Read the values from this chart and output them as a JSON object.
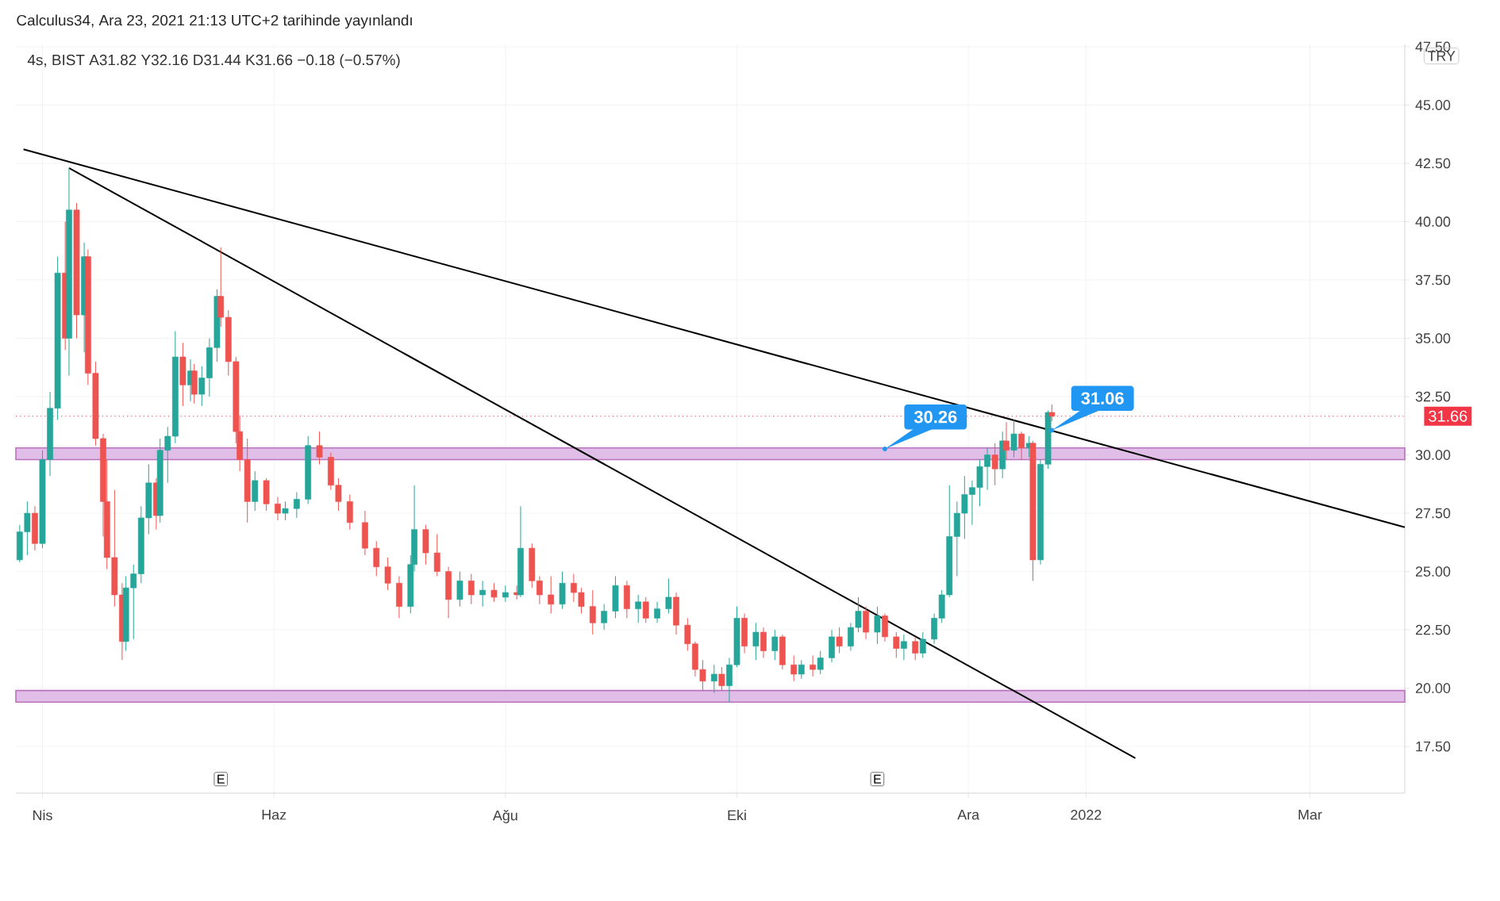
{
  "chart_data": {
    "type": "candlestick",
    "title": "Calculus34, Ara 23, 2021 21:13 UTC+2 tarihinde yayınlandı",
    "subtitle": "4s, BIST  A31.82  Y32.16  D31.44  K31.66  −0.18 (−0.57%)",
    "ylabel": "TRY",
    "x": [
      "2021-03-26",
      "2021-03-28",
      "2021-03-30",
      "2021-04-01",
      "2021-04-03",
      "2021-04-05",
      "2021-04-07",
      "2021-04-08",
      "2021-04-10",
      "2021-04-12",
      "2021-04-13",
      "2021-04-15",
      "2021-04-17",
      "2021-04-18",
      "2021-04-20",
      "2021-04-22",
      "2021-04-23",
      "2021-04-25",
      "2021-04-27",
      "2021-04-29",
      "2021-05-01",
      "2021-05-02",
      "2021-05-04",
      "2021-05-06",
      "2021-05-08",
      "2021-05-10",
      "2021-05-11",
      "2021-05-13",
      "2021-05-15",
      "2021-05-17",
      "2021-05-18",
      "2021-05-20",
      "2021-05-22",
      "2021-05-23",
      "2021-05-25",
      "2021-05-27",
      "2021-05-30",
      "2021-06-02",
      "2021-06-04",
      "2021-06-07",
      "2021-06-10",
      "2021-06-13",
      "2021-06-16",
      "2021-06-18",
      "2021-06-21",
      "2021-06-25",
      "2021-06-28",
      "2021-07-01",
      "2021-07-04",
      "2021-07-07",
      "2021-07-08",
      "2021-07-11",
      "2021-07-14",
      "2021-07-17",
      "2021-07-20",
      "2021-07-23",
      "2021-07-26",
      "2021-07-29",
      "2021-08-01",
      "2021-08-04",
      "2021-08-05",
      "2021-08-08",
      "2021-08-10",
      "2021-08-13",
      "2021-08-16",
      "2021-08-19",
      "2021-08-21",
      "2021-08-24",
      "2021-08-27",
      "2021-08-30",
      "2021-09-02",
      "2021-09-05",
      "2021-09-07",
      "2021-09-10",
      "2021-09-13",
      "2021-09-15",
      "2021-09-18",
      "2021-09-20",
      "2021-09-22",
      "2021-09-25",
      "2021-09-27",
      "2021-09-29",
      "2021-10-01",
      "2021-10-03",
      "2021-10-06",
      "2021-10-08",
      "2021-10-11",
      "2021-10-13",
      "2021-10-16",
      "2021-10-18",
      "2021-10-21",
      "2021-10-23",
      "2021-10-26",
      "2021-10-28",
      "2021-10-31",
      "2021-11-02",
      "2021-11-04",
      "2021-11-07",
      "2021-11-09",
      "2021-11-12",
      "2021-11-14",
      "2021-11-17",
      "2021-11-19",
      "2021-11-22",
      "2021-11-24",
      "2021-11-26",
      "2021-11-28",
      "2021-11-30",
      "2021-12-02",
      "2021-12-04",
      "2021-12-06",
      "2021-12-08",
      "2021-12-10",
      "2021-12-11",
      "2021-12-13",
      "2021-12-15",
      "2021-12-17",
      "2021-12-18",
      "2021-12-20",
      "2021-12-22",
      "2021-12-23"
    ],
    "ohlc": [
      [
        25.5,
        27.0,
        25.4,
        26.7
      ],
      [
        26.7,
        28.0,
        25.7,
        27.5
      ],
      [
        27.5,
        27.8,
        25.9,
        26.2
      ],
      [
        26.2,
        30.2,
        26.0,
        29.8
      ],
      [
        29.8,
        32.7,
        29.1,
        32.0
      ],
      [
        32.0,
        38.5,
        31.5,
        37.8
      ],
      [
        37.8,
        40.0,
        34.5,
        35.0
      ],
      [
        35.0,
        42.3,
        33.4,
        40.5
      ],
      [
        40.5,
        40.8,
        35.0,
        36.0
      ],
      [
        36.0,
        39.1,
        34.4,
        38.5
      ],
      [
        38.5,
        38.8,
        33.0,
        33.5
      ],
      [
        33.5,
        34.0,
        30.4,
        30.7
      ],
      [
        30.7,
        30.9,
        26.5,
        28.0
      ],
      [
        28.0,
        29.8,
        25.1,
        25.6
      ],
      [
        25.6,
        28.5,
        23.5,
        24.0
      ],
      [
        24.0,
        24.5,
        21.2,
        22.0
      ],
      [
        22.0,
        24.8,
        21.6,
        24.3
      ],
      [
        24.3,
        25.3,
        22.1,
        24.9
      ],
      [
        24.9,
        27.8,
        24.5,
        27.3
      ],
      [
        27.3,
        29.6,
        26.6,
        28.8
      ],
      [
        28.8,
        29.0,
        26.8,
        27.4
      ],
      [
        27.4,
        30.7,
        27.1,
        30.2
      ],
      [
        30.2,
        31.2,
        28.8,
        30.8
      ],
      [
        30.8,
        35.3,
        30.5,
        34.2
      ],
      [
        34.2,
        34.8,
        32.1,
        33.0
      ],
      [
        33.0,
        34.1,
        32.3,
        33.6
      ],
      [
        33.6,
        33.9,
        32.2,
        32.6
      ],
      [
        32.6,
        33.8,
        32.1,
        33.3
      ],
      [
        33.3,
        35.0,
        32.5,
        34.6
      ],
      [
        34.6,
        37.1,
        34.0,
        36.8
      ],
      [
        36.8,
        38.9,
        35.5,
        35.9
      ],
      [
        35.9,
        36.2,
        33.4,
        34.0
      ],
      [
        34.0,
        34.2,
        30.5,
        31.0
      ],
      [
        31.0,
        31.7,
        29.3,
        29.8
      ],
      [
        29.8,
        30.7,
        27.1,
        28.0
      ],
      [
        28.0,
        29.3,
        27.6,
        28.9
      ],
      [
        28.9,
        29.0,
        27.6,
        27.9
      ],
      [
        27.9,
        28.2,
        27.2,
        27.5
      ],
      [
        27.5,
        28.0,
        27.2,
        27.7
      ],
      [
        27.7,
        28.4,
        27.3,
        28.1
      ],
      [
        28.1,
        30.8,
        27.9,
        30.4
      ],
      [
        30.4,
        31.0,
        29.6,
        29.9
      ],
      [
        29.9,
        30.1,
        28.5,
        28.7
      ],
      [
        28.7,
        29.0,
        27.6,
        28.0
      ],
      [
        28.0,
        28.3,
        26.8,
        27.1
      ],
      [
        27.1,
        27.6,
        25.7,
        26.0
      ],
      [
        26.0,
        26.3,
        24.8,
        25.2
      ],
      [
        25.2,
        25.6,
        24.2,
        24.5
      ],
      [
        24.5,
        24.8,
        23.0,
        23.5
      ],
      [
        23.5,
        25.7,
        23.2,
        25.3
      ],
      [
        25.3,
        28.7,
        25.0,
        26.8
      ],
      [
        26.8,
        27.0,
        25.3,
        25.8
      ],
      [
        25.8,
        26.6,
        24.8,
        25.0
      ],
      [
        25.0,
        25.2,
        23.0,
        23.8
      ],
      [
        23.8,
        25.0,
        23.5,
        24.6
      ],
      [
        24.6,
        24.9,
        23.6,
        24.0
      ],
      [
        24.0,
        24.6,
        23.5,
        24.2
      ],
      [
        24.2,
        24.5,
        23.7,
        23.9
      ],
      [
        23.9,
        24.4,
        23.7,
        24.1
      ],
      [
        24.1,
        24.4,
        23.8,
        24.0
      ],
      [
        24.0,
        27.8,
        23.9,
        26.0
      ],
      [
        26.0,
        26.2,
        24.3,
        24.6
      ],
      [
        24.6,
        24.8,
        23.6,
        24.0
      ],
      [
        24.0,
        24.8,
        23.2,
        23.6
      ],
      [
        23.6,
        25.0,
        23.4,
        24.5
      ],
      [
        24.5,
        24.9,
        23.7,
        24.1
      ],
      [
        24.1,
        24.3,
        23.2,
        23.5
      ],
      [
        23.5,
        24.2,
        22.3,
        22.8
      ],
      [
        22.8,
        23.6,
        22.5,
        23.3
      ],
      [
        23.3,
        24.8,
        23.0,
        24.4
      ],
      [
        24.4,
        24.6,
        23.0,
        23.4
      ],
      [
        23.4,
        24.0,
        22.8,
        23.7
      ],
      [
        23.7,
        23.9,
        22.8,
        23.0
      ],
      [
        23.0,
        23.7,
        22.8,
        23.4
      ],
      [
        23.4,
        24.7,
        23.2,
        23.9
      ],
      [
        23.9,
        24.1,
        22.3,
        22.7
      ],
      [
        22.7,
        23.0,
        21.6,
        21.9
      ],
      [
        21.9,
        22.0,
        20.5,
        20.8
      ],
      [
        20.8,
        21.2,
        19.9,
        20.3
      ],
      [
        20.3,
        21.0,
        19.8,
        20.6
      ],
      [
        20.6,
        20.9,
        19.9,
        20.1
      ],
      [
        20.1,
        21.3,
        19.4,
        21.0
      ],
      [
        21.0,
        23.5,
        20.9,
        23.0
      ],
      [
        23.0,
        23.2,
        21.5,
        21.8
      ],
      [
        21.8,
        22.8,
        21.2,
        22.4
      ],
      [
        22.4,
        22.6,
        21.3,
        21.6
      ],
      [
        21.6,
        22.5,
        21.2,
        22.2
      ],
      [
        22.2,
        22.3,
        20.8,
        21.0
      ],
      [
        21.0,
        21.4,
        20.3,
        20.6
      ],
      [
        20.6,
        21.2,
        20.4,
        21.0
      ],
      [
        21.0,
        21.4,
        20.5,
        20.8
      ],
      [
        20.8,
        21.6,
        20.6,
        21.3
      ],
      [
        21.3,
        22.5,
        21.1,
        22.2
      ],
      [
        22.2,
        22.6,
        21.5,
        21.8
      ],
      [
        21.8,
        22.8,
        21.6,
        22.6
      ],
      [
        22.6,
        23.9,
        22.4,
        23.3
      ],
      [
        23.3,
        23.5,
        22.1,
        22.4
      ],
      [
        22.4,
        23.5,
        21.9,
        23.1
      ],
      [
        23.1,
        23.2,
        22.0,
        22.2
      ],
      [
        22.2,
        22.4,
        21.3,
        21.7
      ],
      [
        21.7,
        22.3,
        21.2,
        22.0
      ],
      [
        22.0,
        22.2,
        21.2,
        21.5
      ],
      [
        21.5,
        22.4,
        21.3,
        22.1
      ],
      [
        22.1,
        23.2,
        21.9,
        23.0
      ],
      [
        23.0,
        24.2,
        22.8,
        24.0
      ],
      [
        24.0,
        28.7,
        23.9,
        26.5
      ],
      [
        26.5,
        28.0,
        24.8,
        27.5
      ],
      [
        27.5,
        29.1,
        26.4,
        28.3
      ],
      [
        28.3,
        28.9,
        27.0,
        28.6
      ],
      [
        28.6,
        29.8,
        27.8,
        29.5
      ],
      [
        29.5,
        30.3,
        28.5,
        30.0
      ],
      [
        30.0,
        30.5,
        28.7,
        29.4
      ],
      [
        29.4,
        31.0,
        29.0,
        30.6
      ],
      [
        30.6,
        31.4,
        29.8,
        30.2
      ],
      [
        30.2,
        31.5,
        29.9,
        30.9
      ],
      [
        30.9,
        31.0,
        29.8,
        30.3
      ],
      [
        30.3,
        30.8,
        29.9,
        30.5
      ],
      [
        30.5,
        30.6,
        24.6,
        25.5
      ],
      [
        25.5,
        29.8,
        25.3,
        29.6
      ],
      [
        29.6,
        31.9,
        29.4,
        31.82
      ],
      [
        31.82,
        32.16,
        31.44,
        31.66
      ]
    ],
    "series": [
      {
        "type": "line",
        "x": [
          "2021-03-27",
          "2022-03-26"
        ],
        "values": [
          43.1,
          26.9
        ],
        "color": "#000000"
      },
      {
        "type": "line",
        "x": [
          "2021-04-08",
          "2022-01-14"
        ],
        "values": [
          42.3,
          17.0
        ],
        "color": "#000000"
      }
    ],
    "xlim": [
      "2021-03-25",
      "2022-03-26"
    ],
    "xticks": [
      {
        "value": "2021-04-01",
        "label": "Nis"
      },
      {
        "value": "2021-06-01",
        "label": "Haz"
      },
      {
        "value": "2021-08-01",
        "label": "Ağu"
      },
      {
        "value": "2021-10-01",
        "label": "Eki"
      },
      {
        "value": "2021-12-01",
        "label": "Ara"
      },
      {
        "value": "2022-01-01",
        "label": "2022"
      },
      {
        "value": "2022-03-01",
        "label": "Mar"
      }
    ],
    "ylim": [
      15.5,
      47.6
    ],
    "yticks": [
      {
        "value": 17.5,
        "label": "17.50"
      },
      {
        "value": 20,
        "label": "20.00"
      },
      {
        "value": 22.5,
        "label": "22.50"
      },
      {
        "value": 25,
        "label": "25.00"
      },
      {
        "value": 27.5,
        "label": "27.50"
      },
      {
        "value": 30,
        "label": "30.00"
      },
      {
        "value": 32.5,
        "label": "32.50"
      },
      {
        "value": 35,
        "label": "35.00"
      },
      {
        "value": 37.5,
        "label": "37.50"
      },
      {
        "value": 40,
        "label": "40.00"
      },
      {
        "value": 42.5,
        "label": "42.50"
      },
      {
        "value": 45,
        "label": "45.00"
      },
      {
        "value": 47.5,
        "label": "47.50"
      }
    ],
    "ref_lines": [
      {
        "axis": "y",
        "value": 31.66,
        "label": "31.66",
        "color": "#f23645",
        "line_style": "dotted"
      }
    ],
    "bands": [
      {
        "axis": "y",
        "from": 29.8,
        "to": 30.3,
        "color": "#e1bee7"
      },
      {
        "axis": "y",
        "from": 19.4,
        "to": 19.9,
        "color": "#e1bee7"
      }
    ],
    "annotations": [
      {
        "text": "30.26",
        "x": "2021-11-09",
        "y": 30.26
      },
      {
        "text": "31.06",
        "x": "2021-12-23",
        "y": 31.06
      },
      {
        "text": "E",
        "x": "2021-05-18",
        "y": 16.1
      },
      {
        "text": "E",
        "x": "2021-11-07",
        "y": 16.1
      }
    ],
    "grid": true,
    "marker": "none"
  }
}
